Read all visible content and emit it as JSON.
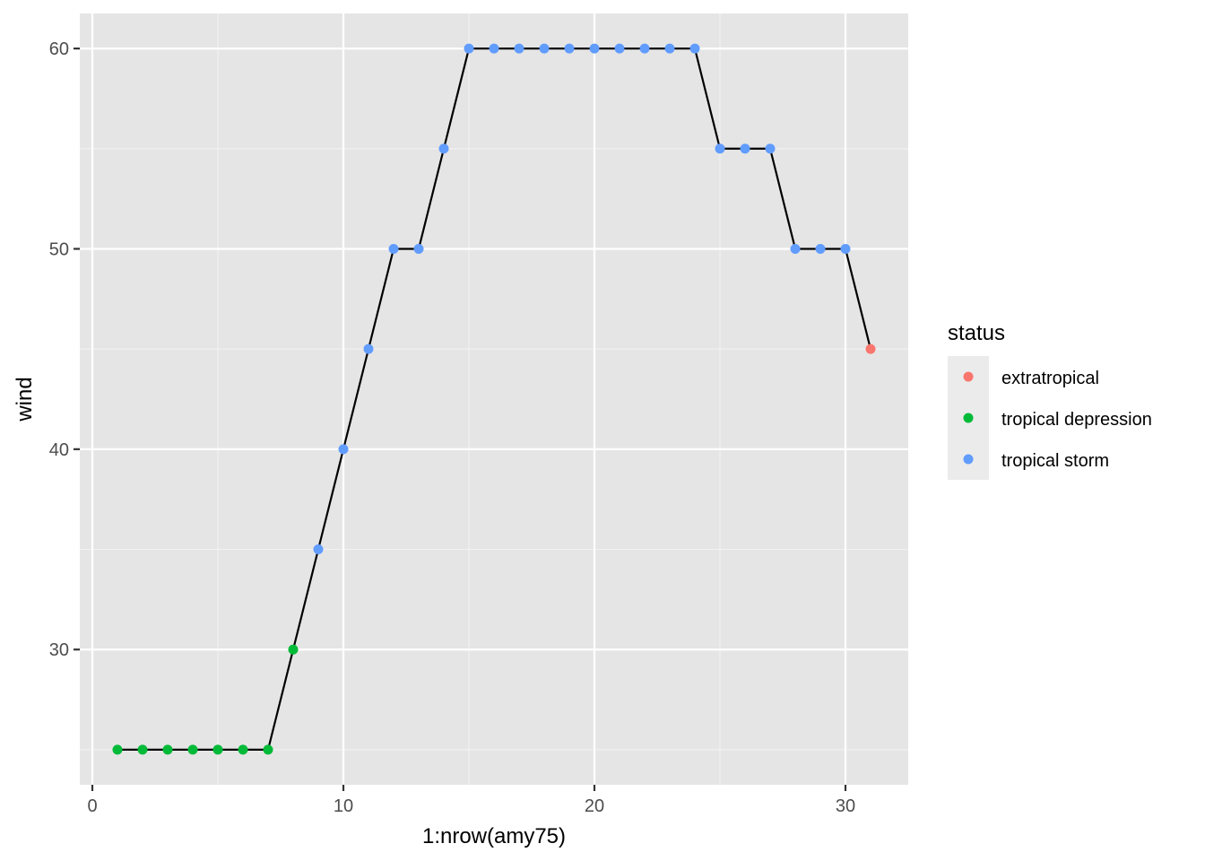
{
  "chart_data": {
    "type": "line",
    "xlabel": "1:nrow(amy75)",
    "ylabel": "wind",
    "xlim": [
      -0.5,
      32.5
    ],
    "ylim": [
      23.25,
      61.75
    ],
    "x_ticks": [
      0,
      10,
      20,
      30
    ],
    "y_ticks": [
      30,
      40,
      50,
      60
    ],
    "x_minor_ticks": [
      5,
      15,
      25
    ],
    "y_minor_ticks": [
      25,
      35,
      45,
      55
    ],
    "grid": true,
    "background": "#e5e5e5",
    "line_color": "#000000",
    "legend": {
      "title": "status",
      "position": "right",
      "entries": [
        {
          "name": "extratropical",
          "color": "#f8766d"
        },
        {
          "name": "tropical depression",
          "color": "#00ba38"
        },
        {
          "name": "tropical storm",
          "color": "#619cff"
        }
      ]
    },
    "points": [
      {
        "x": 1,
        "y": 25,
        "status": "tropical depression"
      },
      {
        "x": 2,
        "y": 25,
        "status": "tropical depression"
      },
      {
        "x": 3,
        "y": 25,
        "status": "tropical depression"
      },
      {
        "x": 4,
        "y": 25,
        "status": "tropical depression"
      },
      {
        "x": 5,
        "y": 25,
        "status": "tropical depression"
      },
      {
        "x": 6,
        "y": 25,
        "status": "tropical depression"
      },
      {
        "x": 7,
        "y": 25,
        "status": "tropical depression"
      },
      {
        "x": 8,
        "y": 30,
        "status": "tropical depression"
      },
      {
        "x": 9,
        "y": 35,
        "status": "tropical storm"
      },
      {
        "x": 10,
        "y": 40,
        "status": "tropical storm"
      },
      {
        "x": 11,
        "y": 45,
        "status": "tropical storm"
      },
      {
        "x": 12,
        "y": 50,
        "status": "tropical storm"
      },
      {
        "x": 13,
        "y": 50,
        "status": "tropical storm"
      },
      {
        "x": 14,
        "y": 55,
        "status": "tropical storm"
      },
      {
        "x": 15,
        "y": 60,
        "status": "tropical storm"
      },
      {
        "x": 16,
        "y": 60,
        "status": "tropical storm"
      },
      {
        "x": 17,
        "y": 60,
        "status": "tropical storm"
      },
      {
        "x": 18,
        "y": 60,
        "status": "tropical storm"
      },
      {
        "x": 19,
        "y": 60,
        "status": "tropical storm"
      },
      {
        "x": 20,
        "y": 60,
        "status": "tropical storm"
      },
      {
        "x": 21,
        "y": 60,
        "status": "tropical storm"
      },
      {
        "x": 22,
        "y": 60,
        "status": "tropical storm"
      },
      {
        "x": 23,
        "y": 60,
        "status": "tropical storm"
      },
      {
        "x": 24,
        "y": 60,
        "status": "tropical storm"
      },
      {
        "x": 25,
        "y": 55,
        "status": "tropical storm"
      },
      {
        "x": 26,
        "y": 55,
        "status": "tropical storm"
      },
      {
        "x": 27,
        "y": 55,
        "status": "tropical storm"
      },
      {
        "x": 28,
        "y": 50,
        "status": "tropical storm"
      },
      {
        "x": 29,
        "y": 50,
        "status": "tropical storm"
      },
      {
        "x": 30,
        "y": 50,
        "status": "tropical storm"
      },
      {
        "x": 31,
        "y": 45,
        "status": "extratropical"
      }
    ]
  }
}
